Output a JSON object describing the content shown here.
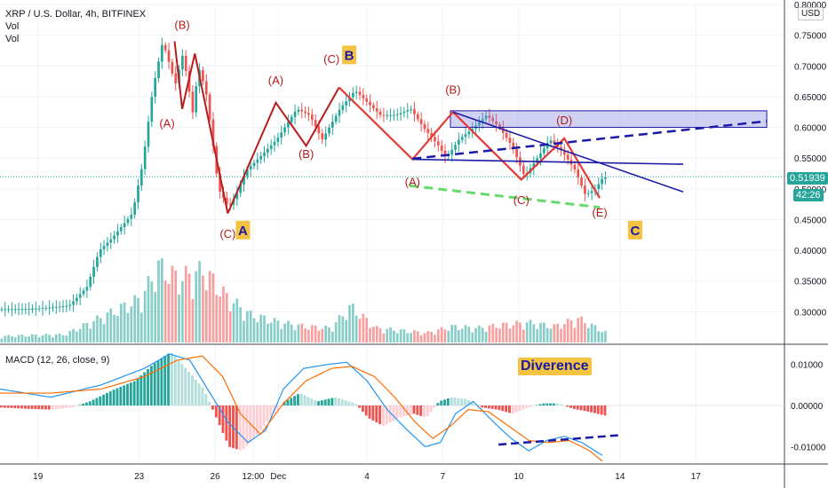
{
  "chart_data": [
    {
      "type": "candlestick",
      "title": "XRP / U.S. Dollar, 4h, BITFINEX",
      "indicators": [
        "Vol",
        "Vol"
      ],
      "currency_label": "USD",
      "ylim": [
        0.25,
        0.8
      ],
      "y_ticks": [
        "0.30000",
        "0.35000",
        "0.40000",
        "0.45000",
        "0.50000",
        "0.55000",
        "0.60000",
        "0.65000",
        "0.70000",
        "0.75000",
        "0.80000"
      ],
      "x_ticks": [
        "19",
        "23",
        "26",
        "12:00",
        "Dec",
        "4",
        "7",
        "10",
        "14",
        "17"
      ],
      "x_tick_days": [
        19,
        23,
        26,
        27.5,
        28.5,
        32,
        35,
        38,
        42,
        45
      ],
      "last_price": "0.51939",
      "countdown": "42:26",
      "price_path": [
        [
          17.5,
          0.304
        ],
        [
          19,
          0.305
        ],
        [
          20.3,
          0.31
        ],
        [
          21,
          0.34
        ],
        [
          21.5,
          0.4
        ],
        [
          22,
          0.42
        ],
        [
          22.8,
          0.46
        ],
        [
          23.2,
          0.54
        ],
        [
          23.6,
          0.66
        ],
        [
          24,
          0.74
        ],
        [
          24.5,
          0.67
        ],
        [
          24.8,
          0.72
        ],
        [
          25.2,
          0.62
        ],
        [
          25.4,
          0.7
        ],
        [
          25.7,
          0.66
        ],
        [
          25.9,
          0.6
        ],
        [
          26.2,
          0.5
        ],
        [
          26.6,
          0.47
        ],
        [
          26.9,
          0.49
        ],
        [
          27.3,
          0.53
        ],
        [
          27.8,
          0.55
        ],
        [
          28.5,
          0.58
        ],
        [
          29.3,
          0.63
        ],
        [
          29.8,
          0.62
        ],
        [
          30.3,
          0.58
        ],
        [
          31,
          0.63
        ],
        [
          31.6,
          0.66
        ],
        [
          32.1,
          0.64
        ],
        [
          32.6,
          0.62
        ],
        [
          33.2,
          0.62
        ],
        [
          33.8,
          0.63
        ],
        [
          34.3,
          0.6
        ],
        [
          34.9,
          0.57
        ],
        [
          35.2,
          0.55
        ],
        [
          35.7,
          0.58
        ],
        [
          36.3,
          0.6
        ],
        [
          36.8,
          0.62
        ],
        [
          37.3,
          0.6
        ],
        [
          37.8,
          0.57
        ],
        [
          38.3,
          0.52
        ],
        [
          38.8,
          0.55
        ],
        [
          39.3,
          0.58
        ],
        [
          39.8,
          0.56
        ],
        [
          40.3,
          0.53
        ],
        [
          40.7,
          0.49
        ],
        [
          41.1,
          0.5
        ],
        [
          41.4,
          0.519
        ]
      ],
      "x_range": [
        17.5,
        48.5
      ],
      "volume_ylim": [
        0,
        1
      ],
      "volume_path": [
        [
          17.5,
          0.08
        ],
        [
          20,
          0.1
        ],
        [
          21,
          0.25
        ],
        [
          22,
          0.4
        ],
        [
          23,
          0.55
        ],
        [
          23.7,
          0.95
        ],
        [
          24.5,
          0.8
        ],
        [
          25.5,
          0.9
        ],
        [
          26.3,
          0.6
        ],
        [
          27.3,
          0.35
        ],
        [
          28.5,
          0.25
        ],
        [
          29.5,
          0.2
        ],
        [
          30.5,
          0.18
        ],
        [
          31.3,
          0.45
        ],
        [
          32.3,
          0.18
        ],
        [
          33.3,
          0.15
        ],
        [
          34.3,
          0.12
        ],
        [
          35.3,
          0.2
        ],
        [
          36.3,
          0.18
        ],
        [
          37.3,
          0.22
        ],
        [
          38.3,
          0.25
        ],
        [
          39.3,
          0.2
        ],
        [
          40.3,
          0.3
        ],
        [
          41.4,
          0.12
        ]
      ],
      "wave_labels": [
        {
          "text": "(B)",
          "day": 24.7,
          "price": 0.76
        },
        {
          "text": "(A)",
          "day": 24.1,
          "price": 0.6
        },
        {
          "text": "(C)",
          "day": 26.5,
          "price": 0.42
        },
        {
          "text": "A",
          "day": 27.1,
          "price": 0.425
        },
        {
          "text": "(A)",
          "day": 28.4,
          "price": 0.67
        },
        {
          "text": "(B)",
          "day": 29.6,
          "price": 0.55
        },
        {
          "text": "(C)",
          "day": 30.6,
          "price": 0.705
        },
        {
          "text": "B",
          "day": 31.3,
          "price": 0.71
        },
        {
          "text": "(B)",
          "day": 35.4,
          "price": 0.655
        },
        {
          "text": "(A)",
          "day": 33.8,
          "price": 0.505
        },
        {
          "text": "(C)",
          "day": 38.1,
          "price": 0.475
        },
        {
          "text": "(D)",
          "day": 39.8,
          "price": 0.605
        },
        {
          "text": "(E)",
          "day": 41.2,
          "price": 0.455
        },
        {
          "text": "C",
          "day": 42.6,
          "price": 0.425
        }
      ],
      "zone": {
        "label": "(D)",
        "day_from": 35.3,
        "day_to": 47.8,
        "price_low": 0.6,
        "price_high": 0.627
      }
    },
    {
      "type": "macd",
      "label": "MACD (12, 26, close, 9)",
      "annotation": "Diverence",
      "ylim": [
        -0.014,
        0.014
      ],
      "y_ticks": [
        "0.01000",
        "0.00000",
        "-0.01000"
      ],
      "histogram": [
        [
          17.5,
          -0.0005
        ],
        [
          18.5,
          -0.0008
        ],
        [
          19.5,
          -0.001
        ],
        [
          20.3,
          -0.0005
        ],
        [
          21,
          0.001
        ],
        [
          22,
          0.004
        ],
        [
          22.8,
          0.006
        ],
        [
          23.5,
          0.01
        ],
        [
          24.2,
          0.013
        ],
        [
          24.8,
          0.009
        ],
        [
          25.5,
          0.004
        ],
        [
          26,
          -0.003
        ],
        [
          26.5,
          -0.01
        ],
        [
          27,
          -0.011
        ],
        [
          27.5,
          -0.008
        ],
        [
          28,
          -0.004
        ],
        [
          28.7,
          0.001
        ],
        [
          29.3,
          0.003
        ],
        [
          30,
          0.001
        ],
        [
          30.7,
          0.002
        ],
        [
          31.5,
          0.0005
        ],
        [
          32,
          -0.003
        ],
        [
          32.6,
          -0.005
        ],
        [
          33.2,
          -0.003
        ],
        [
          33.8,
          -0.002
        ],
        [
          34.3,
          -0.003
        ],
        [
          34.8,
          0.001
        ],
        [
          35.3,
          0.002
        ],
        [
          35.9,
          0.0015
        ],
        [
          36.5,
          -0.0005
        ],
        [
          37.1,
          -0.001
        ],
        [
          37.7,
          -0.002
        ],
        [
          38.3,
          -0.0005
        ],
        [
          38.9,
          0.0005
        ],
        [
          39.5,
          0.0005
        ],
        [
          40.1,
          -0.0008
        ],
        [
          40.7,
          -0.0015
        ],
        [
          41.4,
          -0.0025
        ]
      ],
      "macd_line": [
        [
          17.5,
          0.004
        ],
        [
          19.5,
          0.002
        ],
        [
          21.5,
          0.005
        ],
        [
          23.2,
          0.009
        ],
        [
          24.2,
          0.0125
        ],
        [
          25,
          0.011
        ],
        [
          25.8,
          0.003
        ],
        [
          26.5,
          -0.004
        ],
        [
          27.3,
          -0.009
        ],
        [
          28,
          -0.006
        ],
        [
          28.7,
          0.004
        ],
        [
          29.5,
          0.009
        ],
        [
          30.5,
          0.01
        ],
        [
          31.2,
          0.0105
        ],
        [
          32,
          0.006
        ],
        [
          32.8,
          -0.001
        ],
        [
          33.6,
          -0.006
        ],
        [
          34.3,
          -0.01
        ],
        [
          34.9,
          -0.009
        ],
        [
          35.5,
          -0.002
        ],
        [
          36.2,
          0.001
        ],
        [
          37,
          -0.004
        ],
        [
          37.7,
          -0.008
        ],
        [
          38.4,
          -0.011
        ],
        [
          39.1,
          -0.0085
        ],
        [
          39.8,
          -0.0075
        ],
        [
          40.5,
          -0.009
        ],
        [
          41.4,
          -0.0125
        ]
      ],
      "signal_line": [
        [
          17.5,
          0.003
        ],
        [
          19.5,
          0.003
        ],
        [
          21.5,
          0.004
        ],
        [
          23.2,
          0.007
        ],
        [
          24.5,
          0.011
        ],
        [
          25.5,
          0.012
        ],
        [
          26.3,
          0.007
        ],
        [
          27,
          -0.002
        ],
        [
          27.8,
          -0.007
        ],
        [
          28.7,
          0.0005
        ],
        [
          29.6,
          0.006
        ],
        [
          30.6,
          0.009
        ],
        [
          31.4,
          0.0095
        ],
        [
          32.3,
          0.007
        ],
        [
          33.1,
          0.002
        ],
        [
          33.9,
          -0.004
        ],
        [
          34.6,
          -0.008
        ],
        [
          35.3,
          -0.005
        ],
        [
          36,
          -0.001
        ],
        [
          36.8,
          -0.0015
        ],
        [
          37.6,
          -0.005
        ],
        [
          38.4,
          -0.0085
        ],
        [
          39.2,
          -0.009
        ],
        [
          40,
          -0.0085
        ],
        [
          40.8,
          -0.011
        ],
        [
          41.4,
          -0.014
        ]
      ]
    }
  ]
}
